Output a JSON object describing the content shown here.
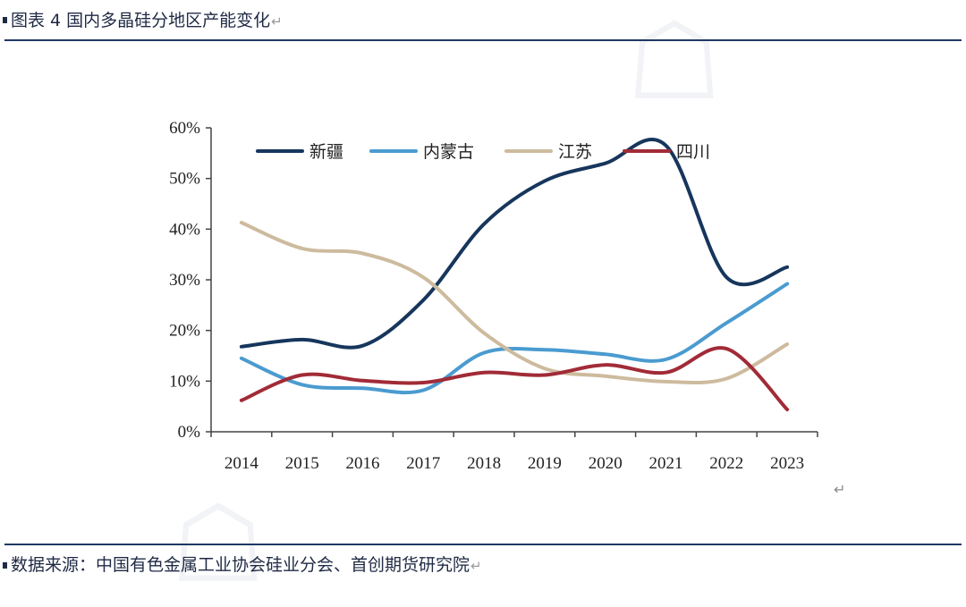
{
  "header": {
    "title": "图表 4 国内多晶硅分地区产能变化",
    "return_mark": "↵"
  },
  "footer": {
    "source": "数据来源：中国有色金属工业协会硅业分会、首创期货研究院",
    "return_mark": "↵"
  },
  "misc": {
    "return_mark": "↵"
  },
  "chart_data": {
    "type": "line",
    "title": "",
    "xlabel": "",
    "ylabel": "",
    "categories": [
      "2014",
      "2015",
      "2016",
      "2017",
      "2018",
      "2019",
      "2020",
      "2021",
      "2022",
      "2023"
    ],
    "ylim": [
      0,
      60
    ],
    "yticks": [
      0,
      10,
      20,
      30,
      40,
      50,
      60
    ],
    "ytick_labels": [
      "0%",
      "10%",
      "20%",
      "30%",
      "40%",
      "50%",
      "60%"
    ],
    "grid": false,
    "legend_position": "top",
    "series": [
      {
        "name": "新疆",
        "color": "#16365c",
        "values": [
          16.8,
          18.2,
          17.0,
          26.0,
          41.0,
          49.5,
          53.0,
          56.5,
          30.5,
          32.5
        ]
      },
      {
        "name": "内蒙古",
        "color": "#4a9bd0",
        "values": [
          14.5,
          9.3,
          8.6,
          8.2,
          15.6,
          16.2,
          15.3,
          14.3,
          21.5,
          29.2
        ]
      },
      {
        "name": "江苏",
        "color": "#cdbb9e",
        "values": [
          41.3,
          36.2,
          35.2,
          30.5,
          19.5,
          12.5,
          11.0,
          9.9,
          10.5,
          17.3
        ]
      },
      {
        "name": "四川",
        "color": "#a12b37",
        "values": [
          6.2,
          11.2,
          10.1,
          9.7,
          11.7,
          11.2,
          13.2,
          11.7,
          16.4,
          4.4
        ]
      }
    ]
  }
}
